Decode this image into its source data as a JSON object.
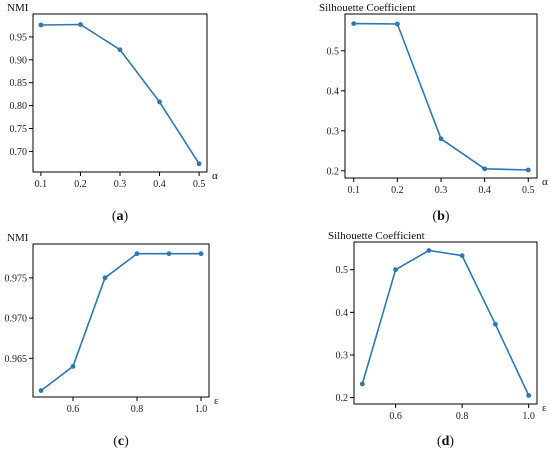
{
  "colors": {
    "line": "#2a78b5",
    "axis": "#000000"
  },
  "chart_data": [
    {
      "type": "line",
      "caption_letter": "a",
      "ylabel": "NMI",
      "xlabel": "α",
      "x": [
        0.1,
        0.2,
        0.3,
        0.4,
        0.5
      ],
      "y": [
        0.976,
        0.977,
        0.922,
        0.808,
        0.673
      ],
      "xlim": [
        0.08,
        0.52
      ],
      "ylim": [
        0.655,
        1.0
      ],
      "xticks": [
        0.1,
        0.2,
        0.3,
        0.4,
        0.5
      ],
      "xtick_labels": [
        "0.1",
        "0.2",
        "0.3",
        "0.4",
        "0.5"
      ],
      "yticks": [
        0.7,
        0.75,
        0.8,
        0.85,
        0.9,
        0.95
      ],
      "ytick_labels": [
        "0.70",
        "0.75",
        "0.80",
        "0.85",
        "0.90",
        "0.95"
      ],
      "grid": false,
      "legend": "none"
    },
    {
      "type": "line",
      "caption_letter": "b",
      "ylabel": "Silhouette Coefficient",
      "xlabel": "α",
      "x": [
        0.1,
        0.2,
        0.3,
        0.4,
        0.5
      ],
      "y": [
        0.568,
        0.567,
        0.28,
        0.205,
        0.202
      ],
      "xlim": [
        0.08,
        0.52
      ],
      "ylim": [
        0.182,
        0.592
      ],
      "xticks": [
        0.1,
        0.2,
        0.3,
        0.4,
        0.5
      ],
      "xtick_labels": [
        "0.1",
        "0.2",
        "0.3",
        "0.4",
        "0.5"
      ],
      "yticks": [
        0.2,
        0.3,
        0.4,
        0.5
      ],
      "ytick_labels": [
        "0.2",
        "0.3",
        "0.4",
        "0.5"
      ],
      "grid": false,
      "legend": "none"
    },
    {
      "type": "line",
      "caption_letter": "c",
      "ylabel": "NMI",
      "xlabel": "ε",
      "x": [
        0.5,
        0.6,
        0.7,
        0.8,
        0.9,
        1.0
      ],
      "y": [
        0.961,
        0.964,
        0.975,
        0.978,
        0.978,
        0.978
      ],
      "xlim": [
        0.475,
        1.025
      ],
      "ylim": [
        0.9602,
        0.9792
      ],
      "xticks": [
        0.6,
        0.8,
        1.0
      ],
      "xtick_labels": [
        "0.6",
        "0.8",
        "1.0"
      ],
      "yticks": [
        0.965,
        0.97,
        0.975
      ],
      "ytick_labels": [
        "0.965",
        "0.970",
        "0.975"
      ],
      "grid": false,
      "legend": "none"
    },
    {
      "type": "line",
      "caption_letter": "d",
      "ylabel": "Silhouette Coefficient",
      "xlabel": "ε",
      "x": [
        0.5,
        0.6,
        0.7,
        0.8,
        0.9,
        1.0
      ],
      "y": [
        0.232,
        0.5,
        0.545,
        0.533,
        0.372,
        0.205
      ],
      "xlim": [
        0.475,
        1.025
      ],
      "ylim": [
        0.185,
        0.565
      ],
      "xticks": [
        0.6,
        0.8,
        1.0
      ],
      "xtick_labels": [
        "0.6",
        "0.8",
        "1.0"
      ],
      "yticks": [
        0.2,
        0.3,
        0.4,
        0.5
      ],
      "ytick_labels": [
        "0.2",
        "0.3",
        "0.4",
        "0.5"
      ],
      "grid": false,
      "legend": "none"
    }
  ]
}
